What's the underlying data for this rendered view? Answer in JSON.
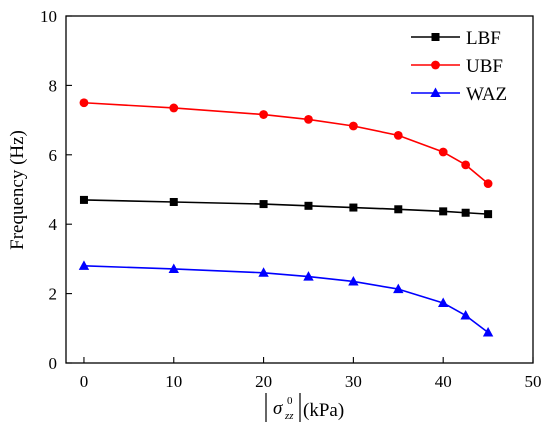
{
  "chart_data": {
    "type": "line",
    "x": [
      0,
      10,
      20,
      25,
      30,
      35,
      40,
      42.5,
      45
    ],
    "xlabel_unit": "(kPa)",
    "ylabel": "Frequency (Hz)",
    "xlim": [
      -2,
      50
    ],
    "ylim": [
      0,
      10
    ],
    "xticks": [
      0,
      10,
      20,
      30,
      40,
      50
    ],
    "yticks": [
      0,
      2,
      4,
      6,
      8,
      10
    ],
    "grid": false,
    "legend_position": "top-right",
    "series": [
      {
        "name": "LBF",
        "color": "#000000",
        "marker": "square",
        "values": [
          4.7,
          4.64,
          4.58,
          4.53,
          4.48,
          4.43,
          4.37,
          4.33,
          4.29
        ]
      },
      {
        "name": "UBF",
        "color": "#ff0000",
        "marker": "circle",
        "values": [
          7.5,
          7.35,
          7.16,
          7.02,
          6.83,
          6.56,
          6.08,
          5.71,
          5.17
        ]
      },
      {
        "name": "WAZ",
        "color": "#0000ff",
        "marker": "triangle",
        "values": [
          2.8,
          2.71,
          2.6,
          2.49,
          2.35,
          2.13,
          1.73,
          1.37,
          0.88
        ]
      }
    ]
  }
}
